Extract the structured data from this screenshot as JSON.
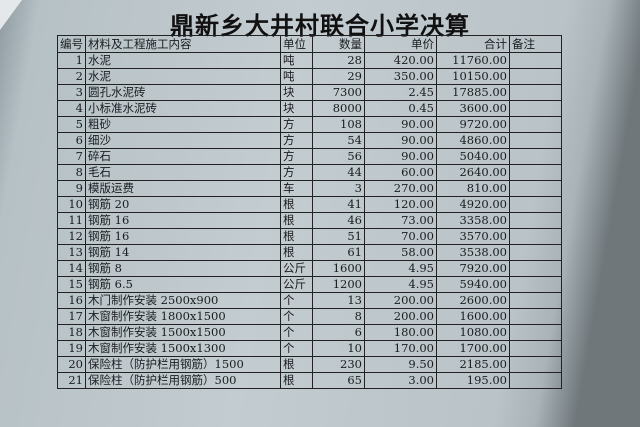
{
  "title": "鼎新乡大井村联合小学决算",
  "columns": [
    "编号",
    "材料及工程施工内容",
    "单位",
    "数量",
    "单价",
    "合计",
    "备注"
  ],
  "rows": [
    [
      "1",
      "水泥",
      "吨",
      "28",
      "420.00",
      "11760.00",
      ""
    ],
    [
      "2",
      "水泥",
      "吨",
      "29",
      "350.00",
      "10150.00",
      ""
    ],
    [
      "3",
      "圆孔水泥砖",
      "块",
      "7300",
      "2.45",
      "17885.00",
      ""
    ],
    [
      "4",
      "小标准水泥砖",
      "块",
      "8000",
      "0.45",
      "3600.00",
      ""
    ],
    [
      "5",
      "粗砂",
      "方",
      "108",
      "90.00",
      "9720.00",
      ""
    ],
    [
      "6",
      "细沙",
      "方",
      "54",
      "90.00",
      "4860.00",
      ""
    ],
    [
      "7",
      "碎石",
      "方",
      "56",
      "90.00",
      "5040.00",
      ""
    ],
    [
      "8",
      "毛石",
      "方",
      "44",
      "60.00",
      "2640.00",
      ""
    ],
    [
      "9",
      "模版运费",
      "车",
      "3",
      "270.00",
      "810.00",
      ""
    ],
    [
      "10",
      "钢筋 20",
      "根",
      "41",
      "120.00",
      "4920.00",
      ""
    ],
    [
      "11",
      "钢筋 16",
      "根",
      "46",
      "73.00",
      "3358.00",
      ""
    ],
    [
      "12",
      "钢筋 16",
      "根",
      "51",
      "70.00",
      "3570.00",
      ""
    ],
    [
      "13",
      "钢筋 14",
      "根",
      "61",
      "58.00",
      "3538.00",
      ""
    ],
    [
      "14",
      "钢筋 8",
      "公斤",
      "1600",
      "4.95",
      "7920.00",
      ""
    ],
    [
      "15",
      "钢筋 6.5",
      "公斤",
      "1200",
      "4.95",
      "5940.00",
      ""
    ],
    [
      "16",
      "木门制作安装 2500x900",
      "个",
      "13",
      "200.00",
      "2600.00",
      ""
    ],
    [
      "17",
      "木窗制作安装 1800x1500",
      "个",
      "8",
      "200.00",
      "1600.00",
      ""
    ],
    [
      "18",
      "木窗制作安装 1500x1500",
      "个",
      "6",
      "180.00",
      "1080.00",
      ""
    ],
    [
      "19",
      "木窗制作安装 1500x1300",
      "个",
      "10",
      "170.00",
      "1700.00",
      ""
    ],
    [
      "20",
      "保险柱（防护栏用钢筋）1500",
      "根",
      "230",
      "9.50",
      "2185.00",
      ""
    ],
    [
      "21",
      "保险柱（防护栏用钢筋）500",
      "根",
      "65",
      "3.00",
      "195.00",
      ""
    ]
  ]
}
